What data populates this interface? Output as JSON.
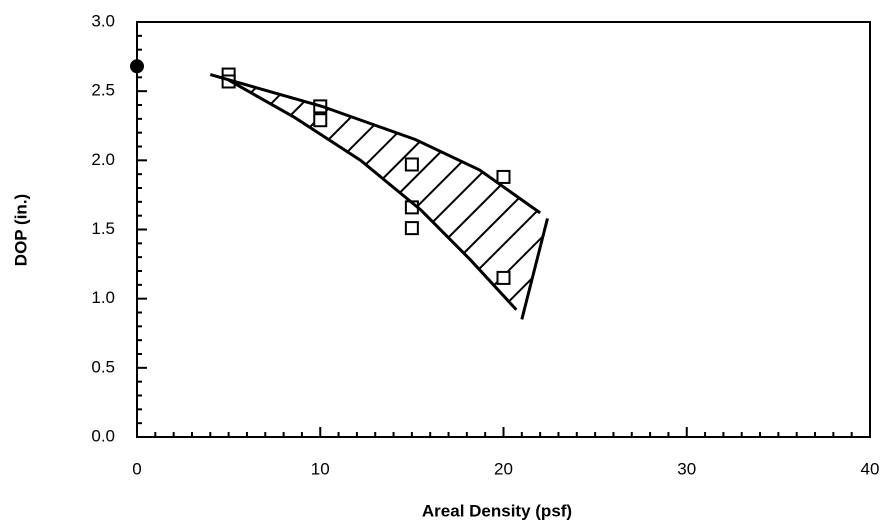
{
  "chart_data": {
    "type": "scatter",
    "xlabel": "Areal Density (psf)",
    "ylabel": "DOP (in.)",
    "xlim": [
      0,
      40
    ],
    "ylim": [
      0,
      3
    ],
    "xticks": [
      0,
      10,
      20,
      30,
      40
    ],
    "yticks": [
      {
        "value": 0,
        "label": "0.0"
      },
      {
        "value": 0.5,
        "label": "0.5"
      },
      {
        "value": 1,
        "label": "1.0"
      },
      {
        "value": 1.5,
        "label": "1.5"
      },
      {
        "value": 2,
        "label": "2.0"
      },
      {
        "value": 2.5,
        "label": "2.5"
      },
      {
        "value": 3,
        "label": "3.0"
      }
    ],
    "xminor": [
      1,
      2,
      3,
      4,
      5,
      6,
      7,
      8,
      9,
      11,
      12,
      13,
      14,
      15,
      16,
      17,
      18,
      19,
      21,
      22,
      23,
      24,
      25,
      26,
      27,
      28,
      29,
      31,
      32,
      33,
      34,
      35,
      36,
      37,
      38,
      39
    ],
    "yminor": [
      0.1,
      0.2,
      0.3,
      0.4,
      0.6,
      0.7,
      0.8,
      0.9,
      1.1,
      1.2,
      1.3,
      1.4,
      1.6,
      1.7,
      1.8,
      1.9,
      2.1,
      2.2,
      2.3,
      2.4,
      2.6,
      2.7,
      2.8,
      2.9
    ],
    "series": [
      {
        "marker": "square",
        "color": "#000000",
        "x": [
          5,
          5,
          10,
          10,
          15,
          15,
          15,
          20,
          20
        ],
        "values": [
          2.62,
          2.57,
          2.39,
          2.29,
          1.97,
          1.66,
          1.51,
          1.88,
          1.15
        ]
      },
      {
        "marker": "circle",
        "color": "#000000",
        "x": [
          0
        ],
        "values": [
          2.68
        ]
      },
      {
        "marker": "line",
        "color": "#000000",
        "x": [
          4,
          10.1,
          15.2,
          18.7,
          22
        ],
        "values": [
          2.62,
          2.39,
          2.15,
          1.93,
          1.62
        ]
      },
      {
        "marker": "line",
        "color": "#000000",
        "x": [
          5,
          8.6,
          12.2,
          15.5,
          18.2,
          20.7
        ],
        "values": [
          2.58,
          2.31,
          2.0,
          1.64,
          1.28,
          0.92
        ]
      },
      {
        "marker": "line",
        "color": "#000000",
        "x": [
          22.4,
          21
        ],
        "values": [
          1.58,
          0.85
        ]
      }
    ]
  }
}
